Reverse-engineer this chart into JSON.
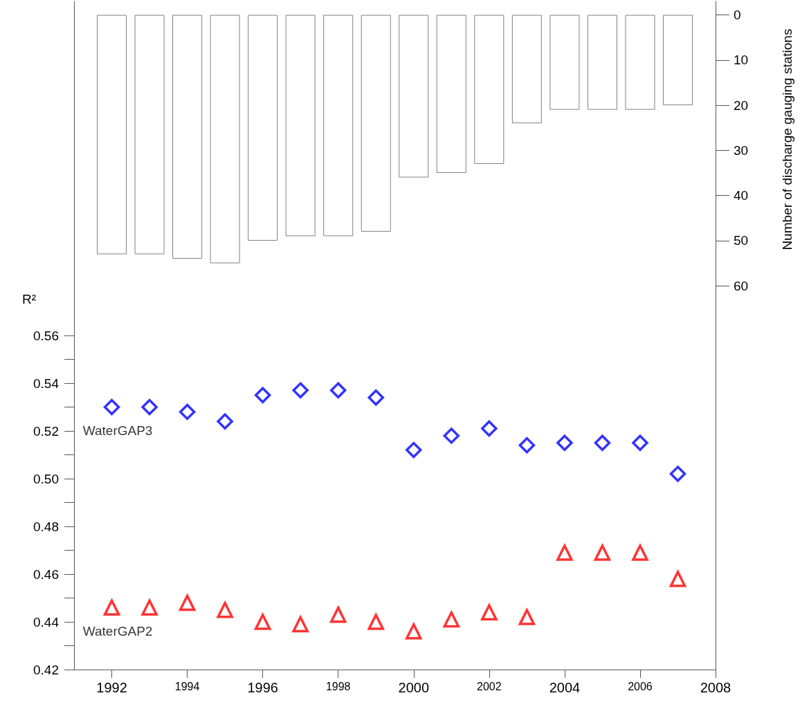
{
  "chart_data": {
    "type": "scatter",
    "ylabel": "R²",
    "y2label": "Number of discharge gauging stations",
    "x": [
      1992,
      1993,
      1994,
      1995,
      1996,
      1997,
      1998,
      1999,
      2000,
      2001,
      2002,
      2003,
      2004,
      2005,
      2006,
      2007
    ],
    "xlim": [
      1991,
      2008
    ],
    "xticks": [
      1992,
      1994,
      1996,
      1998,
      2000,
      2002,
      2004,
      2006,
      2008
    ],
    "ylim": [
      0.42,
      0.7
    ],
    "yticks": [
      0.42,
      {
        "value": 0.43,
        "label": null
      },
      0.44,
      {
        "value": 0.45,
        "label": null
      },
      0.46,
      {
        "value": 0.47,
        "label": null
      },
      0.48,
      {
        "value": 0.49,
        "label": null
      },
      {
        "value": 0.5,
        "label": "0.50"
      },
      {
        "value": 0.51,
        "label": null
      },
      0.52,
      {
        "value": 0.53,
        "label": null
      },
      0.54,
      {
        "value": 0.55,
        "label": null
      },
      0.56
    ],
    "y2lim": [
      145,
      -3
    ],
    "y2ticks": [
      0,
      10,
      20,
      30,
      40,
      50,
      60
    ],
    "grid": false,
    "legend": false,
    "series": [
      {
        "type": "bar",
        "axis": "y2",
        "color": "#808080",
        "values": [
          53,
          53,
          54,
          55,
          50,
          49,
          49,
          48,
          36,
          35,
          33,
          24,
          21,
          21,
          21,
          20
        ]
      },
      {
        "name": "WaterGAP3",
        "color": "#0000ff",
        "marker": "diamond",
        "values": [
          0.53,
          0.53,
          0.528,
          0.524,
          0.535,
          0.537,
          0.537,
          0.534,
          0.512,
          0.518,
          0.521,
          0.514,
          0.515,
          0.515,
          0.515,
          0.502
        ]
      },
      {
        "name": "WaterGAP2",
        "color": "#ff0000",
        "marker": "triangle",
        "values": [
          0.446,
          0.446,
          0.448,
          0.445,
          0.44,
          0.439,
          0.443,
          0.44,
          0.436,
          0.441,
          0.444,
          0.442,
          0.469,
          0.469,
          0.469,
          0.458
        ]
      }
    ]
  }
}
